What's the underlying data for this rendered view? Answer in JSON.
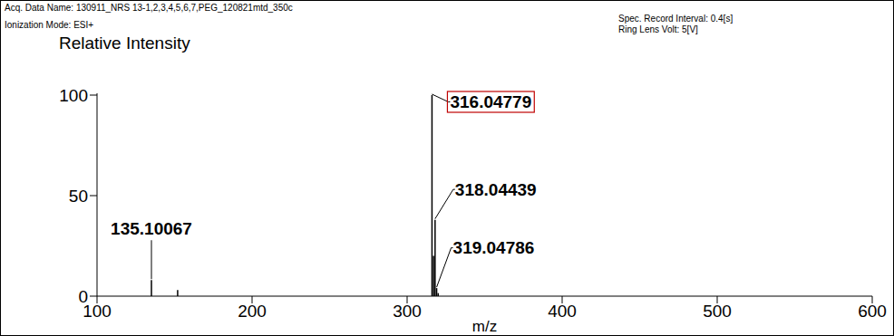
{
  "chart_data": {
    "type": "bar",
    "header": [
      "Acq. Data Name: 130911_NRS 13-1,2,3,4,5,6,7,PEG_120821mtd_350c",
      "Ionization Mode: ESI+"
    ],
    "header_right": [
      "Spec. Record Interval: 0.4[s]",
      "Ring Lens Volt: 5[V]"
    ],
    "y_label": "Relative Intensity",
    "x_label": "m/z",
    "x": [
      135.10067,
      152.0,
      316.04779,
      317.05,
      318.04439,
      319.04786,
      320.04
    ],
    "values": [
      8,
      3,
      100,
      20,
      38,
      4,
      1.5
    ],
    "peak_labels": [
      "135.10067",
      null,
      "316.04779",
      null,
      "318.04439",
      "319.04786",
      null
    ],
    "color": "#000000",
    "xlim": [
      100,
      600
    ],
    "xticks": [
      100,
      200,
      300,
      400,
      500,
      600
    ],
    "ylim": [
      0,
      100
    ],
    "yticks": [
      0,
      50,
      100
    ],
    "grid": false
  }
}
